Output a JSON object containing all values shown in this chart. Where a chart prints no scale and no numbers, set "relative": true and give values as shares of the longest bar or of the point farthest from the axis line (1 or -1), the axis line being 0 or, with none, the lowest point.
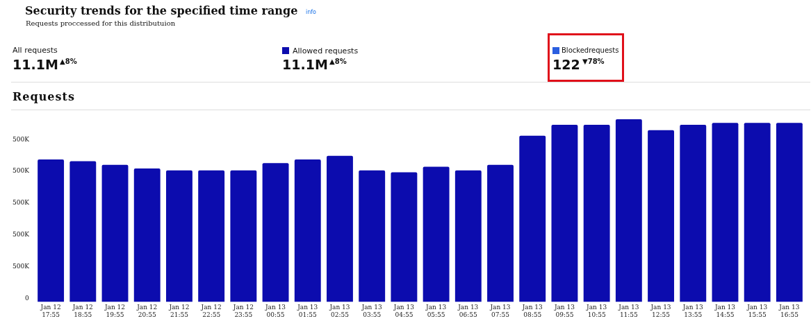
{
  "chart_data": {
    "type": "bar",
    "title": "Security trends for the specified time range",
    "subtitle": "Requests proccessed for this distributuion",
    "annotations": [
      "info",
      "All requests",
      "11.1M",
      "▲8%",
      "Allowed requests",
      "11.1M",
      "▲8%",
      "Blockedrequests",
      "122",
      "▼78%",
      "Requests",
      "0",
      "500K",
      "500K",
      "500K",
      "500K",
      "500K"
    ],
    "categories": [
      "Jan 12 17:55",
      "Jan 12 18:55",
      "Jan 12 19:55",
      "Jan 12 20:55",
      "Jan 12 21:55",
      "Jan 12 22:55",
      "Jan 12 23:55",
      "Jan 13 00:55",
      "Jan 13 01:55",
      "Jan 13 02:55",
      "Jan 13 03:55",
      "Jan 13 04:55",
      "Jan 13 05:55",
      "Jan 13 06:55",
      "Jan 13 07:55",
      "Jan 13 08:55",
      "Jan 13 09:55",
      "Jan 13 10:55",
      "Jan 13 11:55",
      "Jan 13 12:55",
      "Jan 13 13:55",
      "Jan 13 14:55",
      "Jan 13 15:55",
      "Jan 13 16:55"
    ],
    "values": [
      0.78,
      0.77,
      0.75,
      0.73,
      0.72,
      0.72,
      0.72,
      0.76,
      0.78,
      0.8,
      0.72,
      0.71,
      0.74,
      0.72,
      0.75,
      0.91,
      0.97,
      0.97,
      1,
      0.94,
      0.97,
      0.98,
      0.98,
      0.98
    ],
    "color": "#0c0cae",
    "relative": true,
    "grid": false,
    "legend": false
  }
}
